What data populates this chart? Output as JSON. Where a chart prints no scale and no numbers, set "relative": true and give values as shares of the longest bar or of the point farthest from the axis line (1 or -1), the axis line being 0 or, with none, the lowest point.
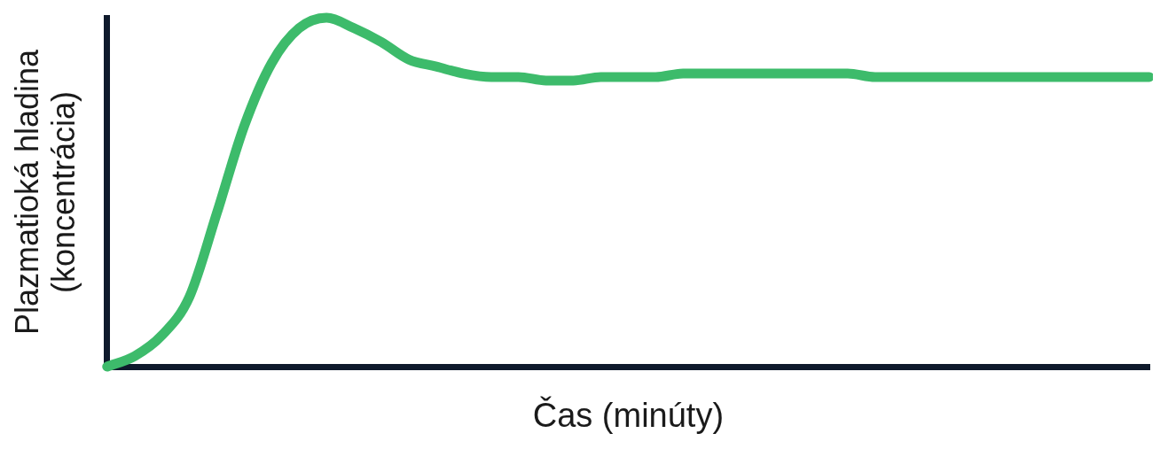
{
  "chart_data": {
    "type": "line",
    "relative": true,
    "xlabel": "Čas (minúty)",
    "ylabel": "Plazmatioká hladina\n(koncentrácia)",
    "grid": false,
    "legend": false,
    "marker": "none",
    "line_style": "solid",
    "categories": [
      null,
      null,
      null,
      null,
      null,
      null,
      null,
      null,
      null,
      null,
      null,
      null,
      null,
      null,
      null,
      null,
      null,
      null,
      null,
      null,
      null,
      null,
      null,
      null,
      null,
      null,
      null,
      null,
      null,
      null,
      null,
      null,
      null,
      null,
      null,
      null,
      null,
      null,
      null
    ],
    "series": [
      {
        "color": "#3dbb6b",
        "values": [
          0,
          0.03,
          0.09,
          0.2,
          0.44,
          0.69,
          0.87,
          0.97,
          1,
          0.97,
          0.93,
          0.88,
          0.86,
          0.84,
          0.83,
          0.83,
          0.82,
          0.82,
          0.83,
          0.83,
          0.83,
          0.84,
          0.84,
          0.84,
          0.84,
          0.84,
          0.84,
          0.84,
          0.83,
          0.83,
          0.83,
          0.83,
          0.83,
          0.83,
          0.83,
          0.83,
          0.83,
          0.83,
          0.83
        ]
      }
    ]
  }
}
